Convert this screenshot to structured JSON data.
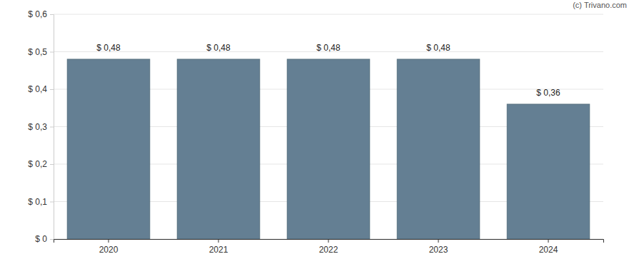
{
  "chart_data": {
    "type": "bar",
    "annotations": [
      "(c) Trivano.com"
    ],
    "categories": [
      "2020",
      "2021",
      "2022",
      "2023",
      "2024"
    ],
    "values": [
      0.48,
      0.48,
      0.48,
      0.48,
      0.36
    ],
    "value_labels": [
      "$ 0,48",
      "$ 0,48",
      "$ 0,48",
      "$ 0,48",
      "$ 0,36"
    ],
    "data_labels": true,
    "color": "#647f93",
    "ylim": [
      0,
      0.6
    ],
    "yticks": [
      {
        "value": 0,
        "label": "$ 0"
      },
      {
        "value": 0.1,
        "label": "$ 0,1"
      },
      {
        "value": 0.2,
        "label": "$ 0,2"
      },
      {
        "value": 0.3,
        "label": "$ 0,3"
      },
      {
        "value": 0.4,
        "label": "$ 0,4"
      },
      {
        "value": 0.5,
        "label": "$ 0,5"
      },
      {
        "value": 0.6,
        "label": "$ 0,6"
      }
    ],
    "grid": true
  }
}
